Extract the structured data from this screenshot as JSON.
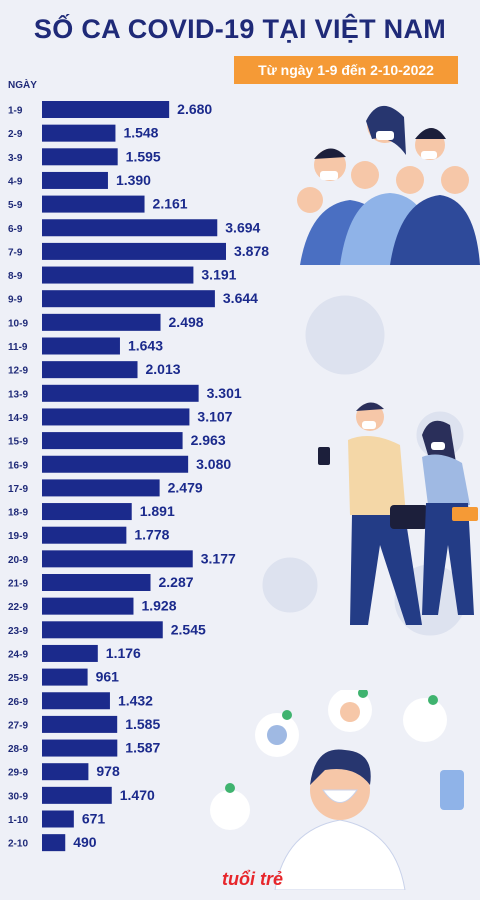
{
  "header": {
    "title": "SỐ CA COVID-19 TẠI VIỆT NAM",
    "subtitle": "Từ ngày 1-9 đến 2-10-2022",
    "y_unit": "NGÀY"
  },
  "logo": "tuổi trẻ",
  "colors": {
    "bar": "#1b2a8c",
    "label": "#1b2a8c",
    "title": "#1f2a78",
    "badge": "#f59a36"
  },
  "chart_data": {
    "type": "bar",
    "orientation": "horizontal",
    "title": "SỐ CA COVID-19 TẠI VIỆT NAM",
    "subtitle": "Từ ngày 1-9 đến 2-10-2022",
    "ylabel": "NGÀY",
    "xlabel": "",
    "categories": [
      "1-9",
      "2-9",
      "3-9",
      "4-9",
      "5-9",
      "6-9",
      "7-9",
      "8-9",
      "9-9",
      "10-9",
      "11-9",
      "12-9",
      "13-9",
      "14-9",
      "15-9",
      "16-9",
      "17-9",
      "18-9",
      "19-9",
      "20-9",
      "21-9",
      "22-9",
      "23-9",
      "24-9",
      "25-9",
      "26-9",
      "27-9",
      "28-9",
      "29-9",
      "30-9",
      "1-10",
      "2-10"
    ],
    "values": [
      2680,
      1548,
      1595,
      1390,
      2161,
      3694,
      3878,
      3191,
      3644,
      2498,
      1643,
      2013,
      3301,
      3107,
      2963,
      3080,
      2479,
      1891,
      1778,
      3177,
      2287,
      1928,
      2545,
      1176,
      961,
      1432,
      1585,
      1587,
      978,
      1470,
      671,
      490
    ],
    "value_labels": [
      "2.680",
      "1.548",
      "1.595",
      "1.390",
      "2.161",
      "3.694",
      "3.878",
      "3.191",
      "3.644",
      "2.498",
      "1.643",
      "2.013",
      "3.301",
      "3.107",
      "2.963",
      "3.080",
      "2.479",
      "1.891",
      "1.778",
      "3.177",
      "2.287",
      "1.928",
      "2.545",
      "1.176",
      "961",
      "1.432",
      "1.585",
      "1.587",
      "978",
      "1.470",
      "671",
      "490"
    ],
    "xlim": [
      0,
      3878
    ],
    "grid": false,
    "legend": "none"
  }
}
